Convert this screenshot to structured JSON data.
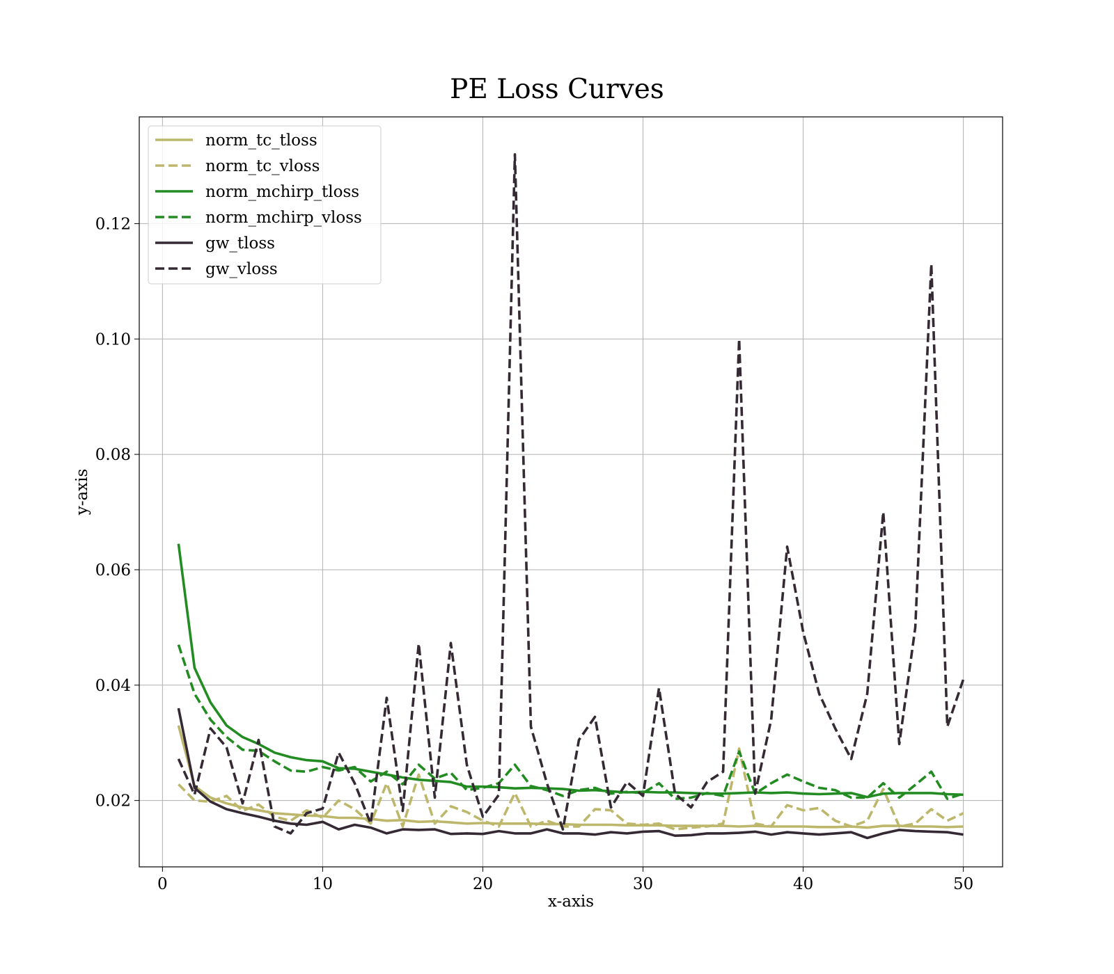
{
  "chart_data": {
    "type": "line",
    "title": "PE Loss Curves",
    "xlabel": "x-axis",
    "ylabel": "y-axis",
    "xlim": [
      -1.45,
      52.45
    ],
    "ylim": [
      0.0085,
      0.1385
    ],
    "xticks": [
      0,
      10,
      20,
      30,
      40,
      50
    ],
    "yticks": [
      0.02,
      0.04,
      0.06,
      0.08,
      0.1,
      0.12
    ],
    "xtick_labels": [
      "0",
      "10",
      "20",
      "30",
      "40",
      "50"
    ],
    "ytick_labels": [
      "0.02",
      "0.04",
      "0.06",
      "0.08",
      "0.10",
      "0.12"
    ],
    "grid": true,
    "legend_position": "top-left",
    "x": [
      1,
      2,
      3,
      4,
      5,
      6,
      7,
      8,
      9,
      10,
      11,
      12,
      13,
      14,
      15,
      16,
      17,
      18,
      19,
      20,
      21,
      22,
      23,
      24,
      25,
      26,
      27,
      28,
      29,
      30,
      31,
      32,
      33,
      34,
      35,
      36,
      37,
      38,
      39,
      40,
      41,
      42,
      43,
      44,
      45,
      46,
      47,
      48,
      49,
      50
    ],
    "series": [
      {
        "name": "norm_tc_tloss",
        "color": "#bdb76b",
        "dash": "solid",
        "values": [
          0.033,
          0.0225,
          0.0205,
          0.0195,
          0.0188,
          0.0183,
          0.0178,
          0.0176,
          0.0174,
          0.0173,
          0.017,
          0.017,
          0.0168,
          0.0165,
          0.0166,
          0.0163,
          0.0164,
          0.0162,
          0.016,
          0.0161,
          0.016,
          0.016,
          0.016,
          0.0159,
          0.0159,
          0.0158,
          0.0158,
          0.0158,
          0.0157,
          0.0157,
          0.0157,
          0.0156,
          0.0156,
          0.0156,
          0.0156,
          0.0155,
          0.0156,
          0.0155,
          0.0155,
          0.0155,
          0.0154,
          0.0154,
          0.0155,
          0.0153,
          0.0156,
          0.0156,
          0.0155,
          0.0155,
          0.0154,
          0.0155
        ]
      },
      {
        "name": "norm_tc_vloss",
        "color": "#bdb76b",
        "dash": "dashed",
        "values": [
          0.0228,
          0.02,
          0.0198,
          0.0208,
          0.0182,
          0.0193,
          0.0172,
          0.0165,
          0.0183,
          0.017,
          0.02,
          0.0185,
          0.016,
          0.023,
          0.0155,
          0.0245,
          0.016,
          0.019,
          0.018,
          0.0165,
          0.0155,
          0.0213,
          0.0155,
          0.0165,
          0.0155,
          0.0155,
          0.0185,
          0.0183,
          0.016,
          0.0158,
          0.016,
          0.015,
          0.0153,
          0.0155,
          0.016,
          0.029,
          0.016,
          0.0155,
          0.0192,
          0.0183,
          0.0187,
          0.0165,
          0.0155,
          0.0165,
          0.022,
          0.0155,
          0.016,
          0.0185,
          0.0165,
          0.0178
        ]
      },
      {
        "name": "norm_mchirp_tloss",
        "color": "#228b22",
        "dash": "solid",
        "values": [
          0.0645,
          0.043,
          0.037,
          0.033,
          0.031,
          0.0298,
          0.0283,
          0.0275,
          0.027,
          0.0268,
          0.0256,
          0.0255,
          0.025,
          0.0245,
          0.024,
          0.0236,
          0.0234,
          0.0232,
          0.0224,
          0.0224,
          0.0223,
          0.0221,
          0.0222,
          0.0221,
          0.022,
          0.0217,
          0.0218,
          0.0216,
          0.0214,
          0.0215,
          0.0214,
          0.0214,
          0.0213,
          0.0212,
          0.0212,
          0.0213,
          0.0214,
          0.0213,
          0.0214,
          0.0212,
          0.0211,
          0.0212,
          0.0213,
          0.0206,
          0.0212,
          0.0213,
          0.0213,
          0.0213,
          0.0211,
          0.021
        ]
      },
      {
        "name": "norm_mchirp_vloss",
        "color": "#228b22",
        "dash": "dashed",
        "values": [
          0.047,
          0.0385,
          0.034,
          0.031,
          0.0288,
          0.0286,
          0.0268,
          0.0252,
          0.025,
          0.0258,
          0.0252,
          0.0258,
          0.0233,
          0.025,
          0.0228,
          0.0262,
          0.0238,
          0.0248,
          0.0218,
          0.0222,
          0.023,
          0.0262,
          0.0225,
          0.0218,
          0.0208,
          0.0218,
          0.0222,
          0.0212,
          0.0215,
          0.0213,
          0.023,
          0.0203,
          0.0205,
          0.0213,
          0.0208,
          0.0285,
          0.0212,
          0.023,
          0.0245,
          0.0233,
          0.0222,
          0.0218,
          0.0205,
          0.0205,
          0.023,
          0.0205,
          0.0227,
          0.025,
          0.0203,
          0.0212
        ]
      },
      {
        "name": "gw_tloss",
        "color": "#352a33",
        "dash": "solid",
        "values": [
          0.036,
          0.0222,
          0.0198,
          0.0185,
          0.0178,
          0.0172,
          0.0165,
          0.016,
          0.0158,
          0.0163,
          0.015,
          0.0158,
          0.0153,
          0.0143,
          0.015,
          0.0149,
          0.015,
          0.0142,
          0.0143,
          0.0142,
          0.0147,
          0.0143,
          0.0143,
          0.015,
          0.0143,
          0.0143,
          0.0141,
          0.0145,
          0.0143,
          0.0146,
          0.0147,
          0.0139,
          0.014,
          0.0143,
          0.0143,
          0.0144,
          0.0146,
          0.0141,
          0.0145,
          0.0143,
          0.0141,
          0.0143,
          0.0145,
          0.0135,
          0.0143,
          0.0149,
          0.0147,
          0.0146,
          0.0145,
          0.0141
        ]
      },
      {
        "name": "gw_vloss",
        "color": "#352a33",
        "dash": "dashed",
        "values": [
          0.0272,
          0.021,
          0.0325,
          0.0292,
          0.0195,
          0.0305,
          0.0155,
          0.0143,
          0.0178,
          0.0186,
          0.0283,
          0.023,
          0.016,
          0.0378,
          0.0182,
          0.0472,
          0.0205,
          0.0473,
          0.0262,
          0.0172,
          0.021,
          0.132,
          0.0328,
          0.023,
          0.015,
          0.0305,
          0.0345,
          0.0188,
          0.0232,
          0.0208,
          0.0395,
          0.0212,
          0.0188,
          0.0232,
          0.025,
          0.1,
          0.0212,
          0.034,
          0.064,
          0.0492,
          0.0385,
          0.0325,
          0.0272,
          0.0385,
          0.07,
          0.0298,
          0.05,
          0.113,
          0.0328,
          0.041
        ]
      }
    ]
  }
}
